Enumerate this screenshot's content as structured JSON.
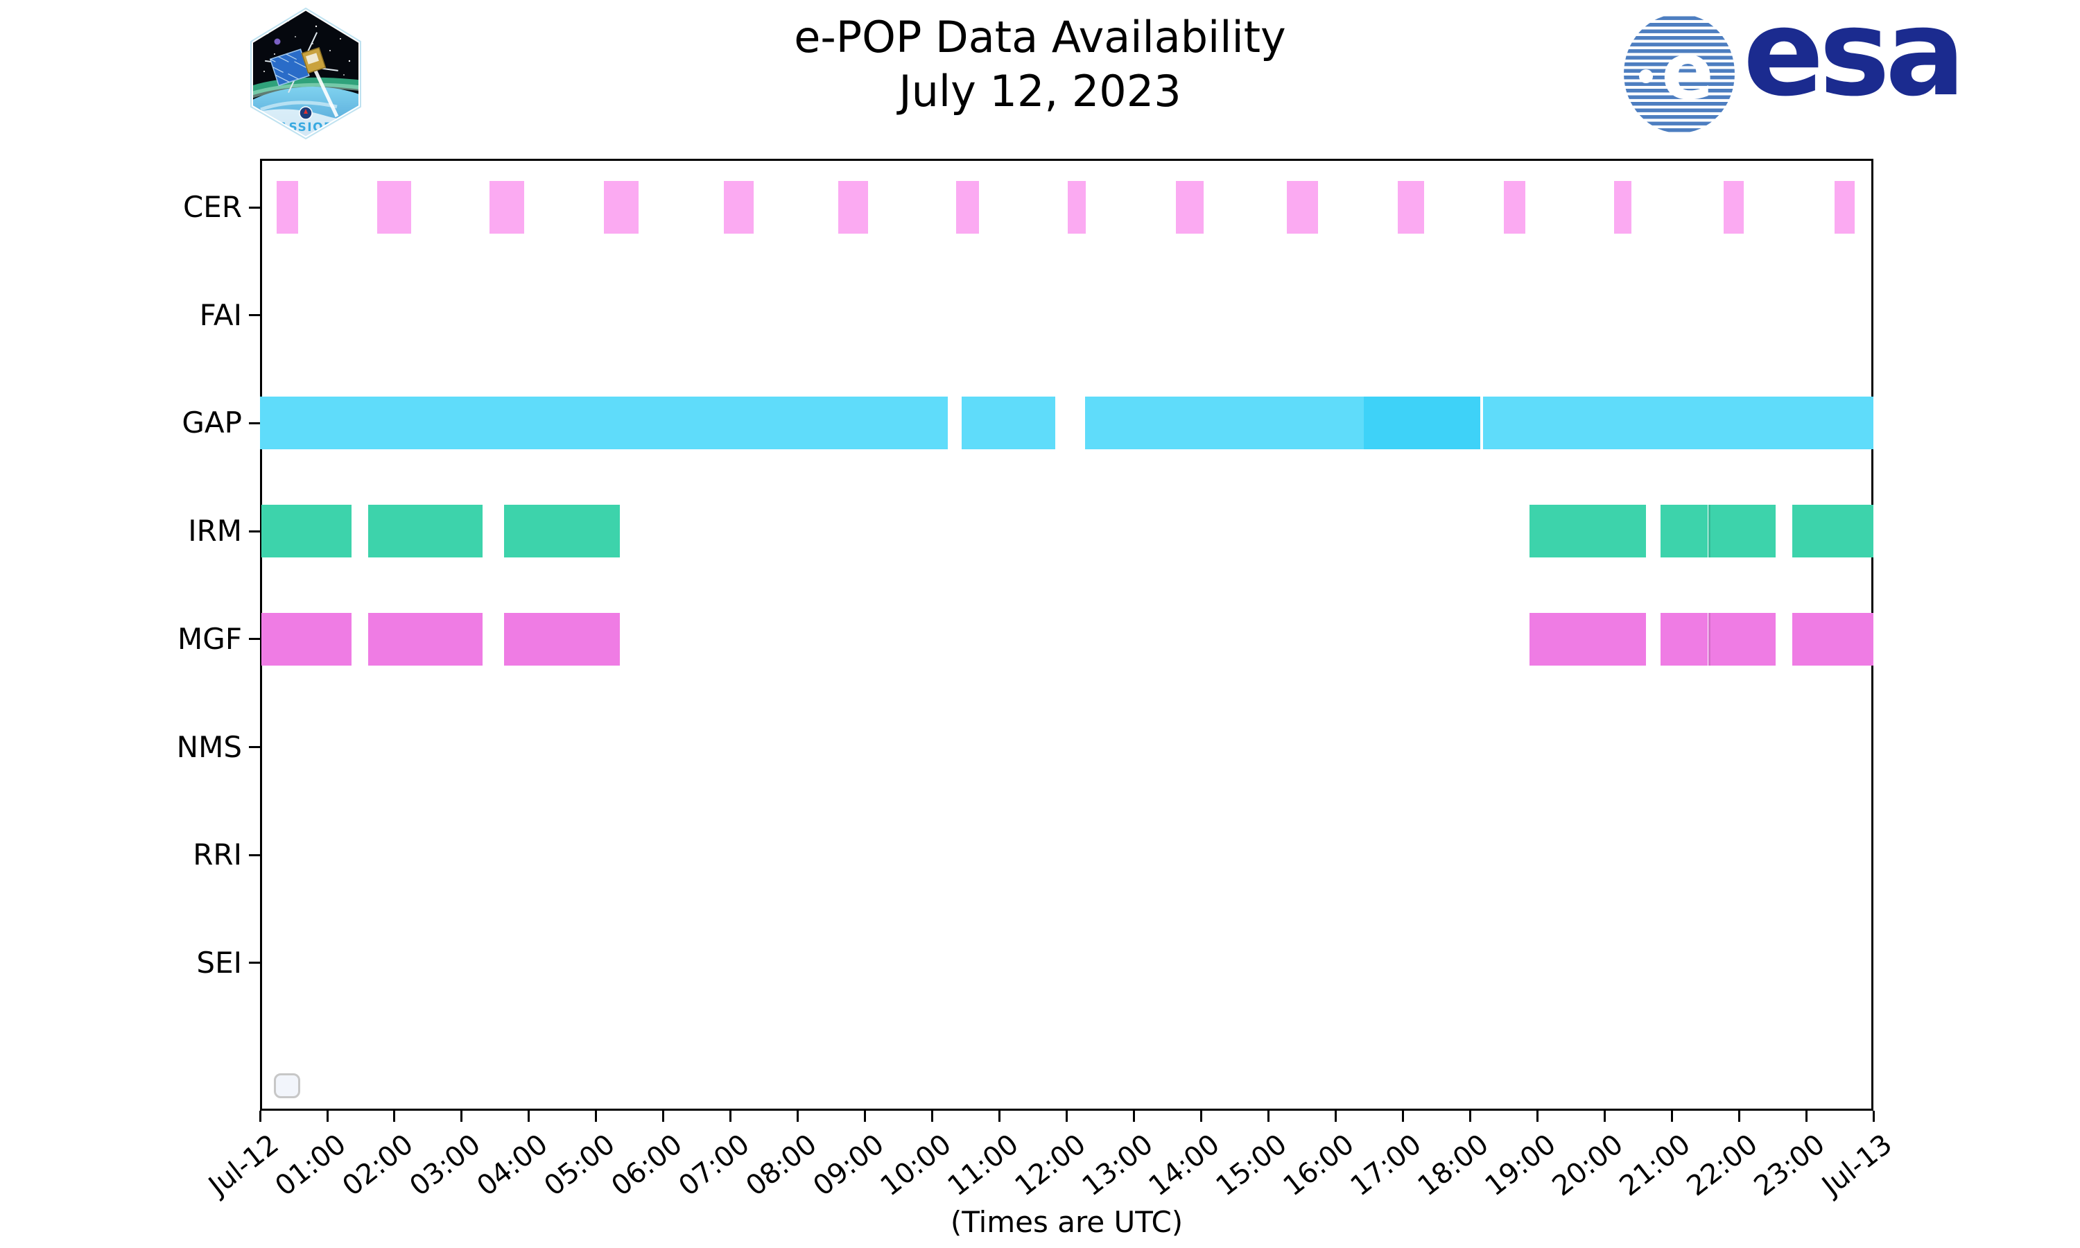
{
  "header": {
    "title": "e-POP Data Availability",
    "subtitle": "July 12, 2023"
  },
  "logos": {
    "cassiope_text": "CASSIOPE",
    "esa_text": "esa"
  },
  "legend": {
    "entries": []
  },
  "chart_data": {
    "type": "timeline",
    "title": "e-POP Data Availability",
    "subtitle": "July 12, 2023",
    "xlabel": "(Times are UTC)",
    "x_unit": "hours UTC on 2023-07-12",
    "x_range_hours": [
      0,
      24
    ],
    "grid": false,
    "x_tick_labels": [
      "Jul-12",
      "01:00",
      "02:00",
      "03:00",
      "04:00",
      "05:00",
      "06:00",
      "07:00",
      "08:00",
      "09:00",
      "10:00",
      "11:00",
      "12:00",
      "13:00",
      "14:00",
      "15:00",
      "16:00",
      "17:00",
      "18:00",
      "19:00",
      "20:00",
      "21:00",
      "22:00",
      "23:00",
      "Jul-13"
    ],
    "rows": [
      {
        "label": "CER",
        "color": "#fbaaf2",
        "segments": [
          {
            "start": 0.25,
            "end": 0.57
          },
          {
            "start": 1.74,
            "end": 2.25
          },
          {
            "start": 3.41,
            "end": 3.93
          },
          {
            "start": 5.12,
            "end": 5.63
          },
          {
            "start": 6.9,
            "end": 7.34
          },
          {
            "start": 8.6,
            "end": 9.05
          },
          {
            "start": 10.35,
            "end": 10.7
          },
          {
            "start": 12.02,
            "end": 12.28
          },
          {
            "start": 13.62,
            "end": 14.04
          },
          {
            "start": 15.27,
            "end": 15.74
          },
          {
            "start": 16.92,
            "end": 17.32
          },
          {
            "start": 18.5,
            "end": 18.82
          },
          {
            "start": 20.14,
            "end": 20.4
          },
          {
            "start": 21.77,
            "end": 22.07
          },
          {
            "start": 23.42,
            "end": 23.72
          }
        ]
      },
      {
        "label": "FAI",
        "color": "#999999",
        "segments": []
      },
      {
        "label": "GAP",
        "color": "#5fdcfa",
        "overlap_color": "#3ed2f8",
        "segments": [
          {
            "start": 0.0,
            "end": 10.23
          },
          {
            "start": 10.44,
            "end": 11.83
          },
          {
            "start": 12.27,
            "end": 16.42
          },
          {
            "start": 16.42,
            "end": 18.15,
            "overlap": true
          },
          {
            "start": 18.19,
            "end": 24.0
          }
        ]
      },
      {
        "label": "IRM",
        "color": "#3dd3ab",
        "segments": [
          {
            "start": 0.02,
            "end": 1.36
          },
          {
            "start": 1.61,
            "end": 3.31
          },
          {
            "start": 3.63,
            "end": 5.35
          },
          {
            "start": 18.88,
            "end": 20.62
          },
          {
            "start": 20.83,
            "end": 21.54
          },
          {
            "start": 21.54,
            "end": 22.55,
            "divider_left": true
          },
          {
            "start": 22.79,
            "end": 24.0
          }
        ]
      },
      {
        "label": "MGF",
        "color": "#ef7ce4",
        "segments": [
          {
            "start": 0.02,
            "end": 1.36
          },
          {
            "start": 1.61,
            "end": 3.31
          },
          {
            "start": 3.63,
            "end": 5.35
          },
          {
            "start": 18.88,
            "end": 20.62
          },
          {
            "start": 20.83,
            "end": 21.54
          },
          {
            "start": 21.54,
            "end": 22.55,
            "divider_left": true
          },
          {
            "start": 22.79,
            "end": 24.0
          }
        ]
      },
      {
        "label": "NMS",
        "color": "#999999",
        "segments": []
      },
      {
        "label": "RRI",
        "color": "#999999",
        "segments": []
      },
      {
        "label": "SEI",
        "color": "#999999",
        "segments": []
      }
    ]
  }
}
